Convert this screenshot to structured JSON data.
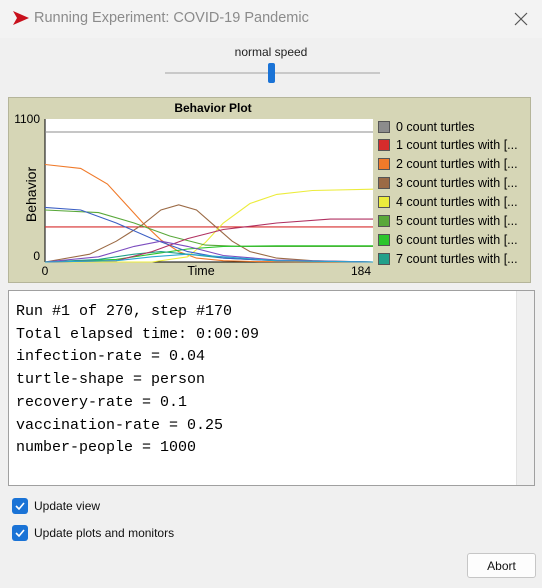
{
  "window": {
    "title": "Running Experiment: COVID-19 Pandemic"
  },
  "speed": {
    "label": "normal speed",
    "value_fraction": 0.5
  },
  "plot": {
    "title": "Behavior Plot"
  },
  "chart_data": {
    "type": "line",
    "title": "Behavior Plot",
    "xlabel": "Time",
    "ylabel": "Behavior",
    "xlim": [
      0,
      184
    ],
    "ylim": [
      0,
      1100
    ],
    "x_tick_labels": [
      "0",
      "184"
    ],
    "y_tick_labels": [
      "0",
      "1100"
    ],
    "grid": false,
    "legend_position": "right",
    "series": [
      {
        "name": "0 count turtles",
        "color": "#8c8c8c",
        "points": [
          [
            0,
            1000
          ],
          [
            184,
            1000
          ]
        ]
      },
      {
        "name": "1 count turtles with [...",
        "color": "#d62c2c",
        "points": [
          [
            0,
            270
          ],
          [
            184,
            270
          ]
        ]
      },
      {
        "name": "2 count turtles with [...",
        "color": "#f07a2a",
        "points": [
          [
            0,
            750
          ],
          [
            20,
            720
          ],
          [
            35,
            600
          ],
          [
            45,
            450
          ],
          [
            55,
            300
          ],
          [
            65,
            170
          ],
          [
            75,
            80
          ],
          [
            85,
            30
          ],
          [
            100,
            10
          ],
          [
            120,
            3
          ],
          [
            184,
            0
          ]
        ]
      },
      {
        "name": "3 count turtles with [...",
        "color": "#9b6a45",
        "points": [
          [
            0,
            0
          ],
          [
            25,
            60
          ],
          [
            40,
            160
          ],
          [
            55,
            290
          ],
          [
            65,
            400
          ],
          [
            75,
            440
          ],
          [
            85,
            400
          ],
          [
            95,
            280
          ],
          [
            105,
            160
          ],
          [
            115,
            80
          ],
          [
            130,
            30
          ],
          [
            150,
            10
          ],
          [
            184,
            0
          ]
        ]
      },
      {
        "name": "4 count turtles with [...",
        "color": "#ecec3c",
        "points": [
          [
            0,
            0
          ],
          [
            60,
            0
          ],
          [
            80,
            40
          ],
          [
            90,
            150
          ],
          [
            100,
            300
          ],
          [
            115,
            450
          ],
          [
            130,
            520
          ],
          [
            150,
            550
          ],
          [
            184,
            560
          ]
        ]
      },
      {
        "name": "5 count turtles with [...",
        "color": "#59a83a",
        "points": [
          [
            0,
            400
          ],
          [
            30,
            380
          ],
          [
            50,
            300
          ],
          [
            70,
            200
          ],
          [
            90,
            130
          ],
          [
            110,
            120
          ],
          [
            184,
            120
          ]
        ]
      },
      {
        "name": "6 count turtles with [...",
        "color": "#2cc52c",
        "points": [
          [
            0,
            0
          ],
          [
            40,
            20
          ],
          [
            60,
            60
          ],
          [
            80,
            100
          ],
          [
            100,
            120
          ],
          [
            130,
            125
          ],
          [
            184,
            125
          ]
        ]
      },
      {
        "name": "7 count turtles with [...",
        "color": "#22a08a",
        "points": [
          [
            0,
            0
          ],
          [
            30,
            20
          ],
          [
            50,
            60
          ],
          [
            65,
            80
          ],
          [
            80,
            60
          ],
          [
            100,
            30
          ],
          [
            130,
            10
          ],
          [
            184,
            0
          ]
        ]
      },
      {
        "name": "",
        "color": "#3b5fc4",
        "points": [
          [
            0,
            420
          ],
          [
            20,
            400
          ],
          [
            40,
            300
          ],
          [
            60,
            180
          ],
          [
            80,
            80
          ],
          [
            100,
            30
          ],
          [
            130,
            10
          ],
          [
            184,
            0
          ]
        ]
      },
      {
        "name": "",
        "color": "#b03060",
        "points": [
          [
            0,
            0
          ],
          [
            40,
            10
          ],
          [
            60,
            80
          ],
          [
            80,
            180
          ],
          [
            100,
            250
          ],
          [
            130,
            300
          ],
          [
            160,
            330
          ],
          [
            184,
            330
          ]
        ]
      },
      {
        "name": "",
        "color": "#7c4dbf",
        "points": [
          [
            0,
            0
          ],
          [
            30,
            40
          ],
          [
            50,
            120
          ],
          [
            65,
            160
          ],
          [
            80,
            120
          ],
          [
            100,
            50
          ],
          [
            130,
            15
          ],
          [
            184,
            0
          ]
        ]
      },
      {
        "name": "",
        "color": "#2aa7d0",
        "points": [
          [
            0,
            0
          ],
          [
            40,
            10
          ],
          [
            60,
            40
          ],
          [
            80,
            60
          ],
          [
            100,
            40
          ],
          [
            130,
            10
          ],
          [
            184,
            0
          ]
        ]
      }
    ]
  },
  "output": {
    "lines": [
      "Run #1 of 270, step #170",
      "Total elapsed time: 0:00:09",
      "infection-rate = 0.04",
      "turtle-shape = person",
      "recovery-rate = 0.1",
      "vaccination-rate = 0.25",
      "number-people = 1000"
    ]
  },
  "options": {
    "update_view": {
      "label": "Update view",
      "checked": true
    },
    "update_plots": {
      "label": "Update plots and monitors",
      "checked": true
    }
  },
  "buttons": {
    "abort": "Abort"
  },
  "icons": {
    "app_icon": "play-arrow-icon",
    "close": "close-icon",
    "checkbox": "checkmark-icon"
  },
  "colors": {
    "accent": "#1a73d6",
    "app_icon": "#c8101c",
    "plot_background": "#d6d6b6"
  }
}
